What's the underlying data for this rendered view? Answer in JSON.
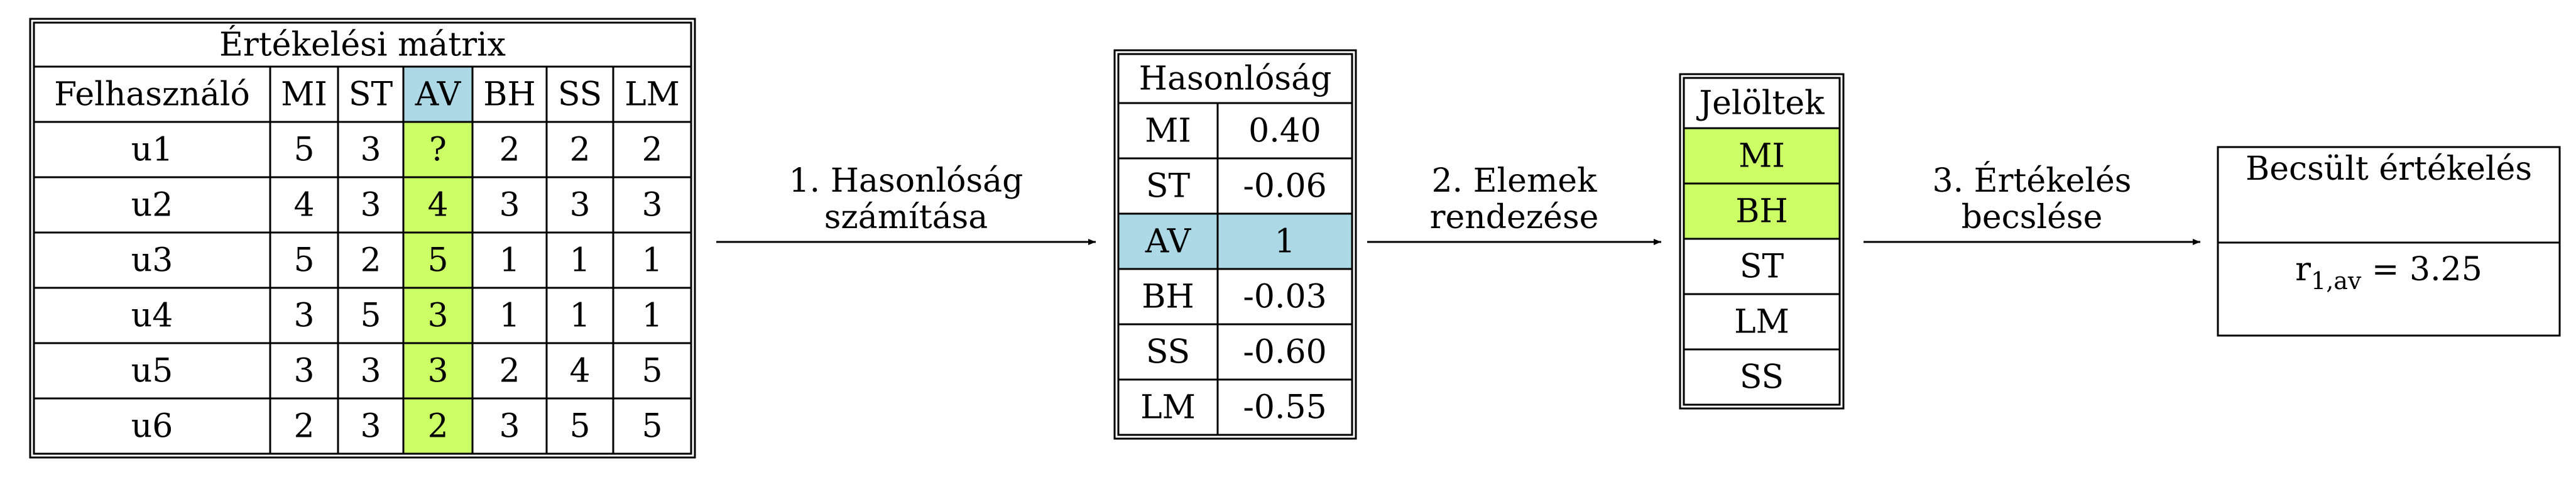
{
  "colors": {
    "highlight_blue": "#add8e6",
    "highlight_green": "#ccff66",
    "stroke": "#000000",
    "background": "#ffffff"
  },
  "rating_matrix": {
    "title": "Értékelési mátrix",
    "columns": [
      "Felhasználó",
      "MI",
      "ST",
      "AV",
      "BH",
      "SS",
      "LM"
    ],
    "highlighted_column": "AV",
    "rows": [
      [
        "u1",
        "5",
        "3",
        "?",
        "2",
        "2",
        "2"
      ],
      [
        "u2",
        "4",
        "3",
        "4",
        "3",
        "3",
        "3"
      ],
      [
        "u3",
        "5",
        "2",
        "5",
        "1",
        "1",
        "1"
      ],
      [
        "u4",
        "3",
        "5",
        "3",
        "1",
        "1",
        "1"
      ],
      [
        "u5",
        "3",
        "3",
        "3",
        "2",
        "4",
        "5"
      ],
      [
        "u6",
        "2",
        "3",
        "2",
        "3",
        "5",
        "5"
      ]
    ]
  },
  "similarity": {
    "title": "Hasonlóság",
    "highlighted_item": "AV",
    "rows": [
      [
        "MI",
        "0.40"
      ],
      [
        "ST",
        "-0.06"
      ],
      [
        "AV",
        "1"
      ],
      [
        "BH",
        "-0.03"
      ],
      [
        "SS",
        "-0.60"
      ],
      [
        "LM",
        "-0.55"
      ]
    ]
  },
  "candidates": {
    "title": "Jelöltek",
    "highlighted_items": [
      "MI",
      "BH"
    ],
    "items": [
      "MI",
      "BH",
      "ST",
      "LM",
      "SS"
    ]
  },
  "estimate": {
    "title": "Becsült értékelés",
    "value_prefix": "r",
    "value_subscript": "1,av",
    "value_suffix": " = 3.25"
  },
  "edges": [
    {
      "line1": "1. Hasonlóság",
      "line2": "számítása"
    },
    {
      "line1": "2. Elemek",
      "line2": "rendezése"
    },
    {
      "line1": "3. Értékelés",
      "line2": "becslése"
    }
  ]
}
